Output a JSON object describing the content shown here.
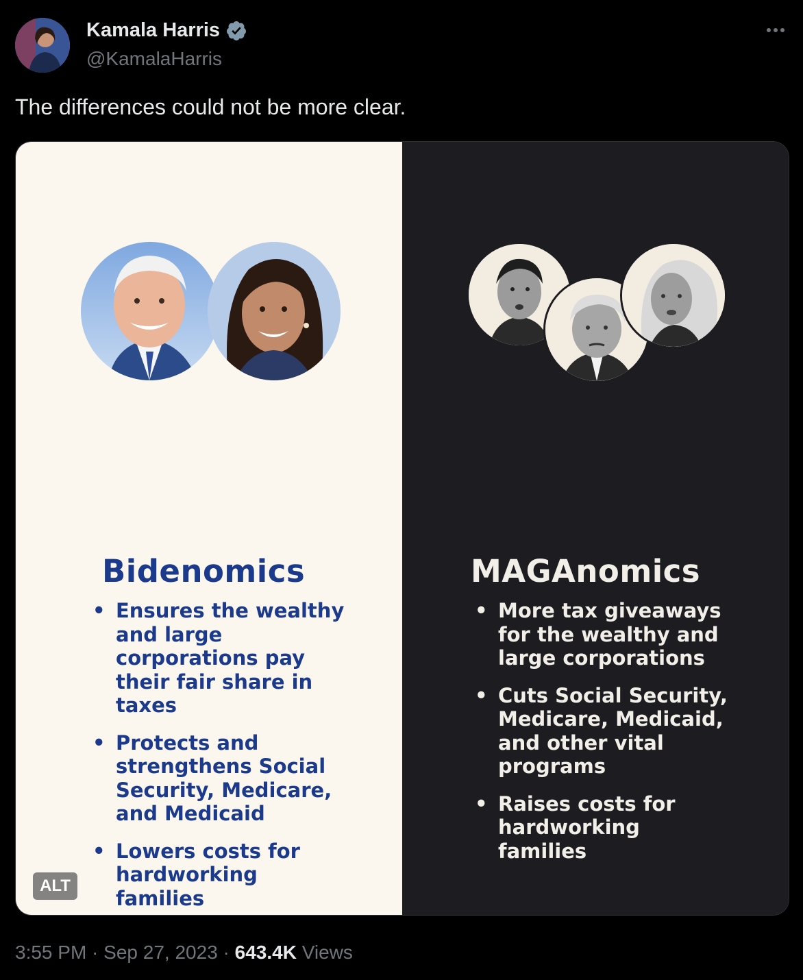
{
  "author": {
    "display_name": "Kamala Harris",
    "handle": "@KamalaHarris",
    "verified_icon": "verified-badge-icon",
    "avatar_icon": "avatar"
  },
  "tweet": {
    "text": "The differences could not be more clear."
  },
  "media": {
    "left": {
      "title": "Bidenomics",
      "bullets": [
        "Ensures the wealthy and large corporations pay their fair share in taxes",
        "Protects and strengthens Social Security, Medicare, and Medicaid",
        "Lowers costs for hardworking families"
      ],
      "background": "#fcf7ee",
      "accent": "#1b3a8c"
    },
    "right": {
      "title": "MAGAnomics",
      "bullets": [
        "More tax giveaways for the wealthy and large corporations",
        "Cuts Social Security, Medicare, Medicaid, and other vital programs",
        "Raises costs for hardworking families"
      ],
      "background": "#1d1c20",
      "accent": "#f2efe9"
    },
    "alt_label": "ALT"
  },
  "footer": {
    "time": "3:55 PM",
    "separator": " · ",
    "date": "Sep 27, 2023",
    "views_count": "643.4K",
    "views_label": " Views"
  }
}
